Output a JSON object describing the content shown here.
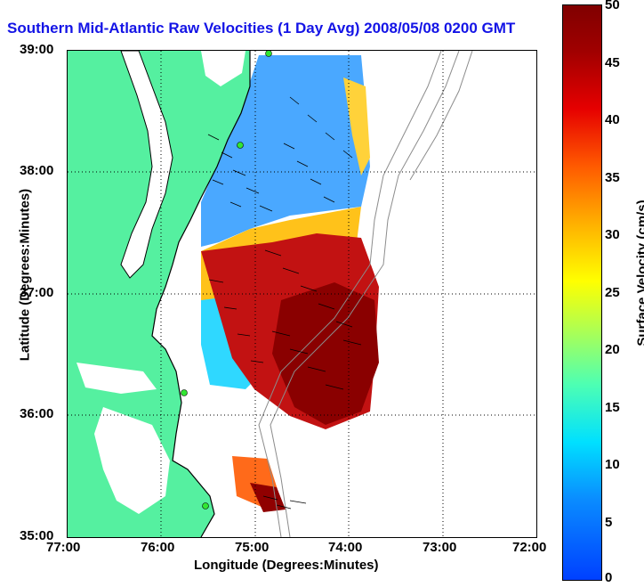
{
  "title": "Southern Mid-Atlantic Raw Velocities (1 Day Avg) 2008/05/08 0200 GMT",
  "axes": {
    "xlabel": "Longitude (Degrees:Minutes)",
    "ylabel": "Latitude (Degrees:Minutes)",
    "x_ticks": [
      "77:00",
      "76:00",
      "75:00",
      "74:00",
      "73:00",
      "72:00"
    ],
    "y_ticks": [
      "39:00",
      "38:00",
      "37:00",
      "36:00",
      "35:00"
    ]
  },
  "colorbar": {
    "label": "Surface Velocity (cm/s)",
    "ticks": [
      "50",
      "45",
      "40",
      "35",
      "30",
      "25",
      "20",
      "15",
      "10",
      "5",
      "0"
    ],
    "range": [
      0,
      50
    ]
  },
  "colors": {
    "title": "#1414e6",
    "land": "#55f0a0",
    "bathymetry": "#8c8c8c",
    "stations": "#32e632"
  },
  "map": {
    "lon_range": [
      "77:00",
      "72:00"
    ],
    "lat_range": [
      "35:00",
      "39:00"
    ],
    "grid": "dotted",
    "features": [
      "land",
      "coastline",
      "bathymetry-contours",
      "velocity-field",
      "velocity-vectors",
      "radar-stations"
    ]
  }
}
